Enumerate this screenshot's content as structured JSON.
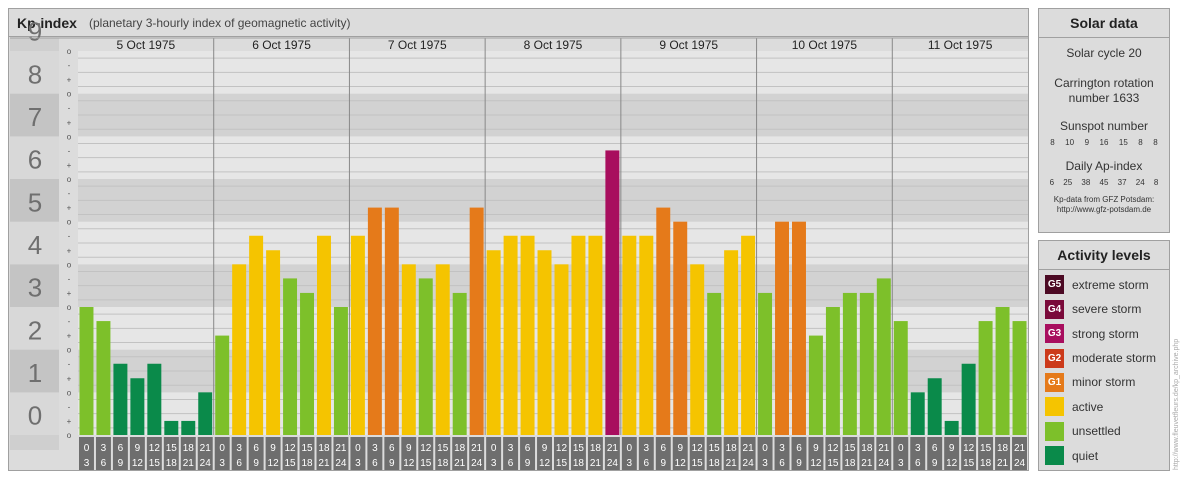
{
  "header": {
    "title": "Kp-index",
    "subtitle": "(planetary 3-hourly index of geomagnetic activity)"
  },
  "chart_data": {
    "type": "bar",
    "title": "Kp-index",
    "subtitle": "(planetary 3-hourly index of geomagnetic activity)",
    "days": [
      "5 Oct 1975",
      "6 Oct 1975",
      "7 Oct 1975",
      "8 Oct 1975",
      "9 Oct 1975",
      "10 Oct 1975",
      "11 Oct 1975"
    ],
    "intervals": [
      [
        "0",
        "3"
      ],
      [
        "3",
        "6"
      ],
      [
        "6",
        "9"
      ],
      [
        "9",
        "12"
      ],
      [
        "12",
        "15"
      ],
      [
        "15",
        "18"
      ],
      [
        "18",
        "21"
      ],
      [
        "21",
        "24"
      ]
    ],
    "values": [
      [
        3.0,
        2.67,
        1.67,
        1.33,
        1.67,
        0.33,
        0.33,
        1.0
      ],
      [
        2.33,
        4.0,
        4.67,
        4.33,
        3.67,
        3.33,
        4.67,
        3.0
      ],
      [
        4.67,
        5.33,
        5.33,
        4.0,
        3.67,
        4.0,
        3.33,
        5.33
      ],
      [
        4.33,
        4.67,
        4.67,
        4.33,
        4.0,
        4.67,
        4.67,
        6.67
      ],
      [
        4.67,
        4.67,
        5.33,
        5.0,
        4.0,
        3.33,
        4.33,
        4.67
      ],
      [
        3.33,
        5.0,
        5.0,
        2.33,
        3.0,
        3.33,
        3.33,
        3.67
      ],
      [
        2.67,
        1.0,
        1.33,
        0.33,
        1.67,
        2.67,
        3.0,
        2.67
      ]
    ],
    "ylim": [
      0,
      9
    ],
    "y_ticks": [
      "0",
      "1",
      "2",
      "3",
      "4",
      "5",
      "6",
      "7",
      "8",
      "9"
    ],
    "minor_ticks": [
      "o",
      "+",
      "-"
    ],
    "grid": true,
    "levels": [
      {
        "code": "G5",
        "label": "extreme storm",
        "color": "#4c0a24",
        "min": 9
      },
      {
        "code": "G4",
        "label": "severe storm",
        "color": "#7a0a3a",
        "min": 8
      },
      {
        "code": "G3",
        "label": "strong storm",
        "color": "#a80e5e",
        "min": 7
      },
      {
        "code": "G2",
        "label": "moderate storm",
        "color": "#cc3a1a",
        "min": 6
      },
      {
        "code": "G1",
        "label": "minor storm",
        "color": "#e57a1a",
        "min": 5
      },
      {
        "code": "",
        "label": "active",
        "color": "#f5c400",
        "min": 4
      },
      {
        "code": "",
        "label": "unsettled",
        "color": "#7dc02a",
        "min": 2
      },
      {
        "code": "",
        "label": "quiet",
        "color": "#0a8a4a",
        "min": 0
      }
    ],
    "bar_colors": {
      "quiet": "#0a8a4a",
      "unsettled": "#7dc02a",
      "active": "#f5c400",
      "storm": "#e57a1a",
      "strong": "#a80e5e"
    }
  },
  "solar": {
    "title": "Solar data",
    "cycle": "Solar cycle 20",
    "carrington_line1": "Carrington rotation",
    "carrington_line2": "number 1633",
    "sunspot_label": "Sunspot number",
    "sunspot_values": [
      "8",
      "10",
      "9",
      "16",
      "15",
      "8",
      "8"
    ],
    "ap_label": "Daily Ap-index",
    "ap_values": [
      "6",
      "25",
      "38",
      "45",
      "37",
      "24",
      "8"
    ],
    "credit_line1": "Kp-data from GFZ Potsdam:",
    "credit_line2": "http://www.gfz-potsdam.de"
  },
  "activity": {
    "title": "Activity levels"
  },
  "watermark": "http://www.fleuvetfleurs.de/kp_archive.php"
}
